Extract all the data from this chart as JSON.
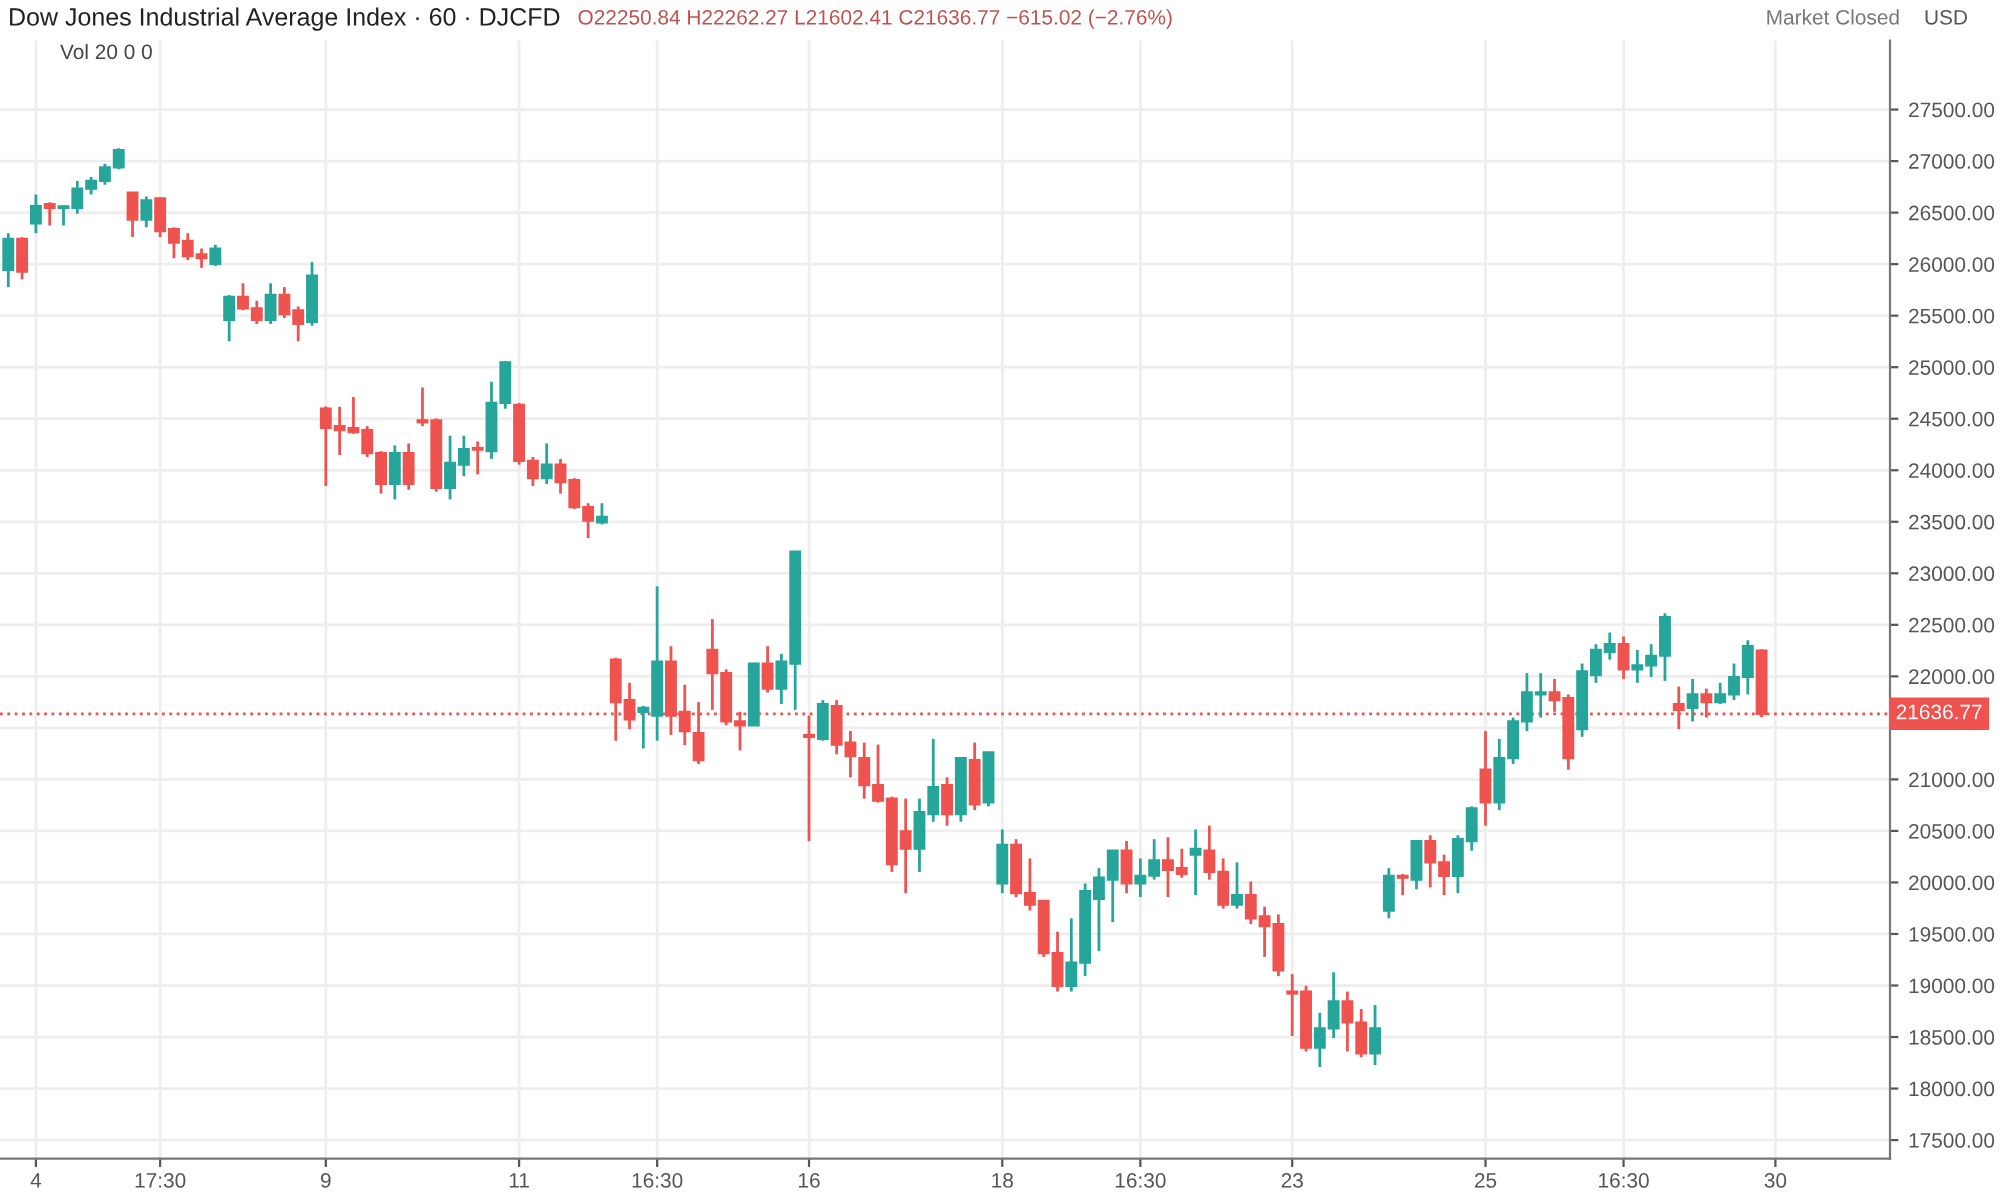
{
  "chart_data": {
    "type": "candlestick",
    "title": "Dow Jones Industrial Average Index · 60 · DJCFD",
    "subtitle": "O22250.84 H22262.27 L21602.41 C21636.77 −615.02 (−2.76%)",
    "annotations": [
      "Vol 20 0 0",
      "Market Closed",
      "USD"
    ],
    "categories": [
      null,
      null,
      "4",
      null,
      null,
      null,
      null,
      null,
      null,
      null,
      null,
      "17:30",
      null,
      null,
      null,
      null,
      null,
      null,
      null,
      null,
      null,
      null,
      null,
      "9",
      null,
      null,
      null,
      null,
      null,
      null,
      null,
      null,
      null,
      null,
      null,
      null,
      null,
      "11",
      null,
      null,
      null,
      null,
      null,
      null,
      null,
      null,
      null,
      "16:30",
      null,
      null,
      null,
      null,
      null,
      null,
      null,
      null,
      null,
      null,
      "16",
      null,
      null,
      null,
      null,
      null,
      null,
      null,
      null,
      null,
      null,
      null,
      null,
      null,
      "18",
      null,
      null,
      null,
      null,
      null,
      null,
      null,
      null,
      null,
      "16:30",
      null,
      null,
      null,
      null,
      null,
      null,
      null,
      null,
      null,
      null,
      "23",
      null,
      null,
      null,
      null,
      null,
      null,
      null,
      null,
      null,
      null,
      null,
      null,
      null,
      "25",
      null,
      null,
      null,
      null,
      null,
      null,
      null,
      null,
      null,
      "16:30",
      null,
      null,
      null,
      null,
      null,
      null,
      null,
      null,
      null,
      null,
      "30",
      null,
      null,
      null,
      null,
      null,
      null,
      null,
      null
    ],
    "ohlc": [
      [
        25945,
        26300,
        25777,
        26245
      ],
      [
        26245,
        26260,
        25852,
        25927
      ],
      [
        26395,
        26676,
        26301,
        26563
      ],
      [
        26582,
        26601,
        26376,
        26545
      ],
      [
        26545,
        26570,
        26376,
        26560
      ],
      [
        26545,
        26807,
        26489,
        26732
      ],
      [
        26732,
        26845,
        26676,
        26807
      ],
      [
        26807,
        26975,
        26770,
        26938
      ],
      [
        26938,
        27125,
        26920,
        27107
      ],
      [
        26695,
        26700,
        26264,
        26432
      ],
      [
        26432,
        26657,
        26357,
        26620
      ],
      [
        26638,
        26650,
        26264,
        26320
      ],
      [
        26339,
        26357,
        26058,
        26208
      ],
      [
        26226,
        26301,
        26039,
        26077
      ],
      [
        26095,
        26151,
        25964,
        26058
      ],
      [
        26002,
        26189,
        25983,
        26151
      ],
      [
        25458,
        25700,
        25252,
        25683
      ],
      [
        25683,
        25814,
        25552,
        25571
      ],
      [
        25571,
        25645,
        25420,
        25458
      ],
      [
        25458,
        25814,
        25420,
        25702
      ],
      [
        25702,
        25777,
        25477,
        25515
      ],
      [
        25552,
        25589,
        25252,
        25421
      ],
      [
        25440,
        26020,
        25402,
        25889
      ],
      [
        24597,
        24620,
        23848,
        24410
      ],
      [
        24428,
        24616,
        24148,
        24390
      ],
      [
        24410,
        24710,
        24354,
        24370
      ],
      [
        24390,
        24428,
        24129,
        24166
      ],
      [
        24166,
        24185,
        23773,
        23867
      ],
      [
        23867,
        24241,
        23717,
        24166
      ],
      [
        24166,
        24260,
        23810,
        23867
      ],
      [
        24485,
        24803,
        24428,
        24465
      ],
      [
        24485,
        24503,
        23792,
        23829
      ],
      [
        23829,
        24335,
        23717,
        24072
      ],
      [
        24054,
        24335,
        23942,
        24204
      ],
      [
        24216,
        24279,
        23960,
        24200
      ],
      [
        24185,
        24859,
        24110,
        24653
      ],
      [
        24653,
        25060,
        24597,
        25046
      ],
      [
        24634,
        24653,
        24054,
        24091
      ],
      [
        24091,
        24129,
        23848,
        23923
      ],
      [
        23923,
        24260,
        23867,
        24054
      ],
      [
        24054,
        24110,
        23773,
        23885
      ],
      [
        23904,
        23923,
        23623,
        23642
      ],
      [
        23642,
        23680,
        23342,
        23511
      ],
      [
        23493,
        23680,
        23474,
        23548
      ],
      [
        22162,
        22180,
        21375,
        21750
      ],
      [
        21769,
        21937,
        21488,
        21582
      ],
      [
        21656,
        21713,
        21300,
        21694
      ],
      [
        21619,
        22874,
        21375,
        22143
      ],
      [
        22143,
        22293,
        21432,
        21619
      ],
      [
        21656,
        21919,
        21332,
        21469
      ],
      [
        21450,
        21750,
        21150,
        21188
      ],
      [
        22256,
        22555,
        21675,
        22031
      ],
      [
        22031,
        22068,
        21525,
        21563
      ],
      [
        21563,
        21656,
        21282,
        21525
      ],
      [
        21525,
        22124,
        21525,
        22124
      ],
      [
        22124,
        22293,
        21843,
        21881
      ],
      [
        21881,
        22218,
        21731,
        22143
      ],
      [
        22124,
        23211,
        21675,
        23211
      ],
      [
        21431,
        21619,
        20401,
        21412
      ],
      [
        21394,
        21769,
        21375,
        21731
      ],
      [
        21712,
        21769,
        21244,
        21338
      ],
      [
        21357,
        21469,
        21020,
        21225
      ],
      [
        21207,
        21357,
        20813,
        20944
      ],
      [
        20944,
        21338,
        20775,
        20794
      ],
      [
        20813,
        20832,
        20102,
        20177
      ],
      [
        20495,
        20813,
        19896,
        20327
      ],
      [
        20327,
        20813,
        20102,
        20682
      ],
      [
        20664,
        21394,
        20589,
        20926
      ],
      [
        20944,
        21020,
        20551,
        20664
      ],
      [
        20664,
        21207,
        20589,
        21207
      ],
      [
        21188,
        21357,
        20701,
        20757
      ],
      [
        20776,
        21263,
        20738,
        21263
      ],
      [
        19990,
        20514,
        19896,
        20364
      ],
      [
        20364,
        20420,
        19858,
        19896
      ],
      [
        19896,
        20233,
        19727,
        19784
      ],
      [
        19821,
        19821,
        19278,
        19315
      ],
      [
        19315,
        19521,
        18941,
        18997
      ],
      [
        18997,
        19652,
        18941,
        19222
      ],
      [
        19222,
        19990,
        19091,
        19915
      ],
      [
        19840,
        20139,
        19334,
        20046
      ],
      [
        20027,
        20308,
        19615,
        20308
      ],
      [
        20308,
        20402,
        19896,
        19990
      ],
      [
        19990,
        20233,
        19858,
        20065
      ],
      [
        20065,
        20420,
        20027,
        20214
      ],
      [
        20214,
        20439,
        19858,
        20121
      ],
      [
        20139,
        20327,
        20046,
        20083
      ],
      [
        20271,
        20514,
        19877,
        20327
      ],
      [
        20308,
        20551,
        20027,
        20102
      ],
      [
        20102,
        20233,
        19746,
        19784
      ],
      [
        19784,
        20195,
        19746,
        19877
      ],
      [
        19877,
        20008,
        19596,
        19652
      ],
      [
        19671,
        19765,
        19278,
        19577
      ],
      [
        19596,
        19690,
        19091,
        19147
      ],
      [
        18941,
        19110,
        18510,
        18922
      ],
      [
        18941,
        18997,
        18360,
        18397
      ],
      [
        18397,
        18735,
        18210,
        18585
      ],
      [
        18585,
        19128,
        18491,
        18847
      ],
      [
        18847,
        18941,
        18360,
        18641
      ],
      [
        18641,
        18772,
        18304,
        18341
      ],
      [
        18341,
        18810,
        18229,
        18585
      ],
      [
        19727,
        20139,
        19652,
        20064
      ],
      [
        20064,
        20083,
        19877,
        20046
      ],
      [
        20027,
        20402,
        19933,
        20402
      ],
      [
        20402,
        20458,
        19952,
        20195
      ],
      [
        20195,
        20270,
        19877,
        20064
      ],
      [
        20064,
        20458,
        19896,
        20420
      ],
      [
        20402,
        20738,
        20308,
        20720
      ],
      [
        21094,
        21469,
        20551,
        20776
      ],
      [
        20776,
        21394,
        20701,
        21207
      ],
      [
        21207,
        21600,
        21150,
        21563
      ],
      [
        21563,
        22031,
        21469,
        21844
      ],
      [
        21825,
        22031,
        21600,
        21844
      ],
      [
        21844,
        21975,
        21656,
        21769
      ],
      [
        21788,
        21825,
        21094,
        21207
      ],
      [
        21488,
        22124,
        21413,
        22049
      ],
      [
        22012,
        22312,
        21937,
        22256
      ],
      [
        22237,
        22425,
        22162,
        22312
      ],
      [
        22312,
        22387,
        21975,
        22068
      ],
      [
        22068,
        22256,
        21937,
        22106
      ],
      [
        22106,
        22312,
        21994,
        22200
      ],
      [
        22200,
        22612,
        21956,
        22574
      ],
      [
        21731,
        21900,
        21488,
        21675
      ],
      [
        21694,
        21975,
        21563,
        21825
      ],
      [
        21825,
        21881,
        21600,
        21750
      ],
      [
        21750,
        21937,
        21731,
        21825
      ],
      [
        21825,
        22124,
        21769,
        21993
      ],
      [
        21994,
        22350,
        21825,
        22293
      ],
      [
        22250.84,
        22262.27,
        21602.41,
        21636.77
      ],
      null,
      null,
      null,
      null,
      null,
      null,
      null,
      null,
      null
    ],
    "colors": [
      "#26a69a",
      "#ef5350",
      "#26a69a",
      "#ef5350",
      "#26a69a",
      "#26a69a",
      "#26a69a",
      "#26a69a",
      "#26a69a",
      "#ef5350",
      "#26a69a",
      "#ef5350",
      "#ef5350",
      "#ef5350",
      "#ef5350",
      "#26a69a",
      "#26a69a",
      "#ef5350",
      "#ef5350",
      "#26a69a",
      "#ef5350",
      "#ef5350",
      "#26a69a",
      "#ef5350",
      "#ef5350",
      "#ef5350",
      "#ef5350",
      "#ef5350",
      "#26a69a",
      "#ef5350",
      "#ef5350",
      "#ef5350",
      "#26a69a",
      "#26a69a",
      "#ef5350",
      "#26a69a",
      "#26a69a",
      "#ef5350",
      "#ef5350",
      "#26a69a",
      "#ef5350",
      "#ef5350",
      "#ef5350",
      "#26a69a",
      "#ef5350",
      "#ef5350",
      "#26a69a",
      "#26a69a",
      "#ef5350",
      "#ef5350",
      "#ef5350",
      "#ef5350",
      "#ef5350",
      "#ef5350",
      "#26a69a",
      "#ef5350",
      "#26a69a",
      "#26a69a",
      "#ef5350",
      "#26a69a",
      "#ef5350",
      "#ef5350",
      "#ef5350",
      "#ef5350",
      "#ef5350",
      "#ef5350",
      "#26a69a",
      "#26a69a",
      "#ef5350",
      "#26a69a",
      "#ef5350",
      "#26a69a",
      "#26a69a",
      "#ef5350",
      "#ef5350",
      "#ef5350",
      "#ef5350",
      "#26a69a",
      "#26a69a",
      "#26a69a",
      "#26a69a",
      "#ef5350",
      "#26a69a",
      "#26a69a",
      "#ef5350",
      "#ef5350",
      "#26a69a",
      "#ef5350",
      "#ef5350",
      "#26a69a",
      "#ef5350",
      "#ef5350",
      "#ef5350",
      "#ef5350",
      "#ef5350",
      "#26a69a",
      "#26a69a",
      "#ef5350",
      "#ef5350",
      "#26a69a",
      "#26a69a",
      "#ef5350",
      "#26a69a",
      "#ef5350",
      "#ef5350",
      "#26a69a",
      "#26a69a",
      "#ef5350",
      "#26a69a",
      "#26a69a",
      "#26a69a",
      "#26a69a",
      "#ef5350",
      "#ef5350",
      "#26a69a",
      "#26a69a",
      "#26a69a",
      "#ef5350",
      "#26a69a",
      "#26a69a",
      "#26a69a",
      "#ef5350",
      "#26a69a",
      "#ef5350",
      "#26a69a",
      "#26a69a",
      "#26a69a",
      "#ef5350",
      null,
      null,
      null,
      null,
      null,
      null,
      null,
      null,
      null
    ],
    "ylim": [
      17320,
      28170
    ],
    "yticks": [
      {
        "value": 17500,
        "label": "17500.00"
      },
      {
        "value": 18000,
        "label": "18000.00"
      },
      {
        "value": 18500,
        "label": "18500.00"
      },
      {
        "value": 19000,
        "label": "19000.00"
      },
      {
        "value": 19500,
        "label": "19500.00"
      },
      {
        "value": 20000,
        "label": "20000.00"
      },
      {
        "value": 20500,
        "label": "20500.00"
      },
      {
        "value": 21000,
        "label": "21000.00"
      },
      {
        "value": 21500,
        "label": null
      },
      {
        "value": 22000,
        "label": "22000.00"
      },
      {
        "value": 22500,
        "label": "22500.00"
      },
      {
        "value": 23000,
        "label": "23000.00"
      },
      {
        "value": 23500,
        "label": "23500.00"
      },
      {
        "value": 24000,
        "label": "24000.00"
      },
      {
        "value": 24500,
        "label": "24500.00"
      },
      {
        "value": 25000,
        "label": "25000.00"
      },
      {
        "value": 25500,
        "label": "25500.00"
      },
      {
        "value": 26000,
        "label": "26000.00"
      },
      {
        "value": 26500,
        "label": "26500.00"
      },
      {
        "value": 27000,
        "label": "27000.00"
      },
      {
        "value": 27500,
        "label": "27500.00"
      }
    ],
    "ref_lines": [
      {
        "axis": "y",
        "value": 21636.77,
        "label": "21636.77",
        "color": "#ef5350",
        "line_style": "dotted"
      }
    ],
    "grid": true,
    "legend": false
  }
}
